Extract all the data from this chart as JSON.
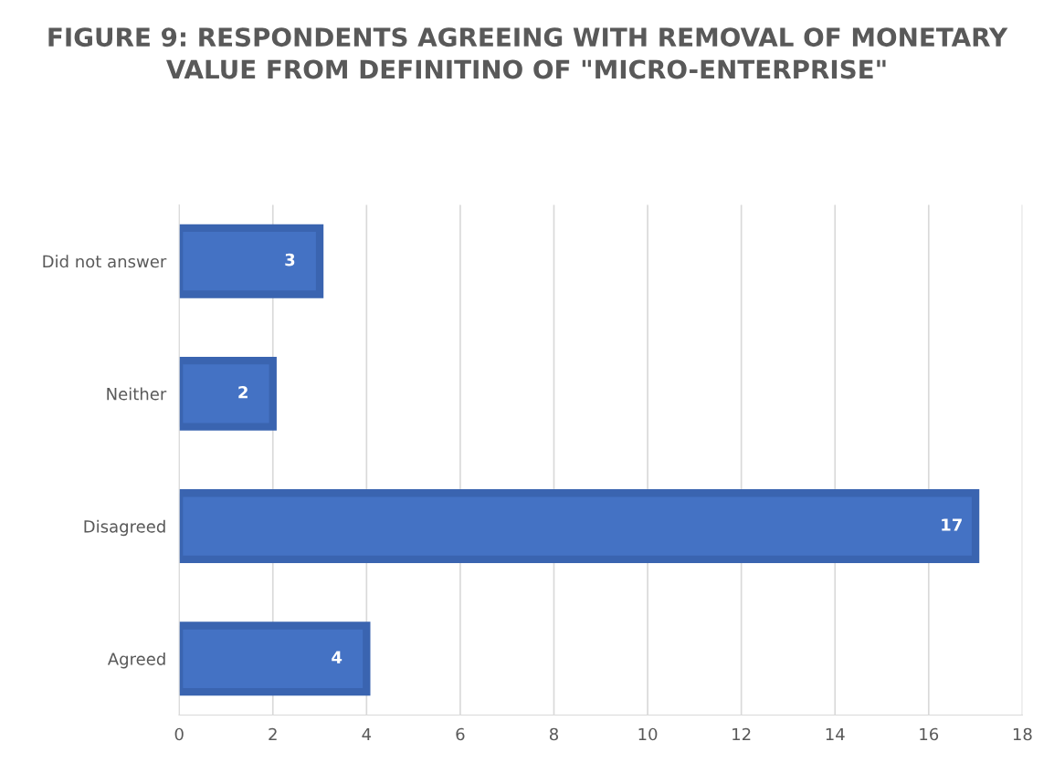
{
  "chart_data": {
    "type": "bar",
    "orientation": "horizontal",
    "title": "FIGURE 9: RESPONDENTS AGREEING WITH REMOVAL OF MONETARY VALUE FROM DEFINITINO OF \"MICRO-ENTERPRISE\"",
    "categories": [
      "Did not answer",
      "Neither",
      "Disagreed",
      "Agreed"
    ],
    "values": [
      3,
      2,
      17,
      4
    ],
    "color": "#4472c4",
    "xlim": [
      0,
      18
    ],
    "xticks": [
      0,
      2,
      4,
      6,
      8,
      10,
      12,
      14,
      16,
      18
    ],
    "grid": "x",
    "data_labels": true,
    "legend": false
  }
}
